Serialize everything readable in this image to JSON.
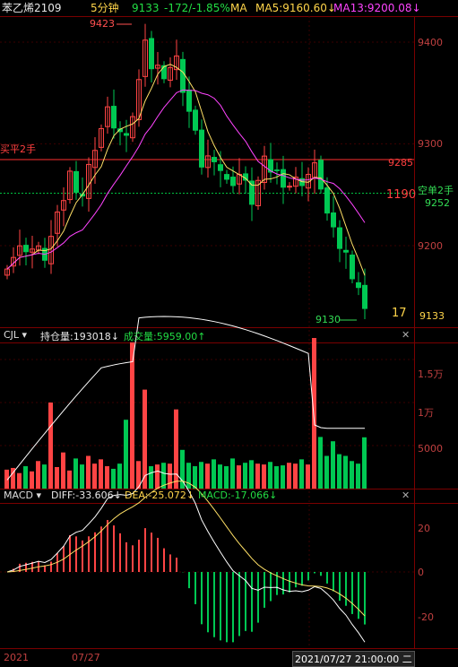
{
  "header": {
    "symbol_name": "苯乙烯2109",
    "period": "5分钟",
    "last_price": "9133",
    "change": "-172/-1.85%",
    "ma_label": "MA",
    "ma5": "MA5:9160.60↓",
    "ma13": "MA13:9200.08↓"
  },
  "price_panel": {
    "y_labels": [
      "9400",
      "9300",
      "9200"
    ],
    "high_label": "9423",
    "low_label": "9130",
    "order_buy_close": "买平2手",
    "order_line_price": "9285",
    "order_line_red_value": "1190",
    "order_sell_open": "空单2手",
    "order_sell_price": "9252",
    "count_label": "17",
    "current_price": "9133",
    "colors": {
      "up": "#ff4444",
      "down": "#00c853",
      "ma5": "#ffe066",
      "ma13": "#ff44ff",
      "line_red": "#ff3030",
      "line_green": "#00c040"
    }
  },
  "volume_panel": {
    "indicator": "CJL",
    "open_interest": "持仓量:193018↓",
    "volume": "成交量:5959.00↑",
    "y_labels": [
      "1.5万",
      "1万",
      "5000"
    ]
  },
  "macd_panel": {
    "indicator": "MACD",
    "diff": "DIFF:-33.606↓",
    "dea": "DEA:-25.072↓",
    "macd": "MACD:-17.066↓",
    "y_labels": [
      "20",
      "0",
      "-20"
    ]
  },
  "footer": {
    "year": "2021",
    "date": "07/27",
    "datetime": "2021/07/27 21:00:00 二"
  },
  "chart_data": {
    "type": "candlestick",
    "series": [
      {
        "name": "MA5",
        "values": [
          9160.6
        ]
      },
      {
        "name": "MA13",
        "values": [
          9200.08
        ]
      }
    ],
    "y_range": [
      9120,
      9440
    ],
    "high": 9423,
    "low": 9130,
    "last": 9133
  }
}
